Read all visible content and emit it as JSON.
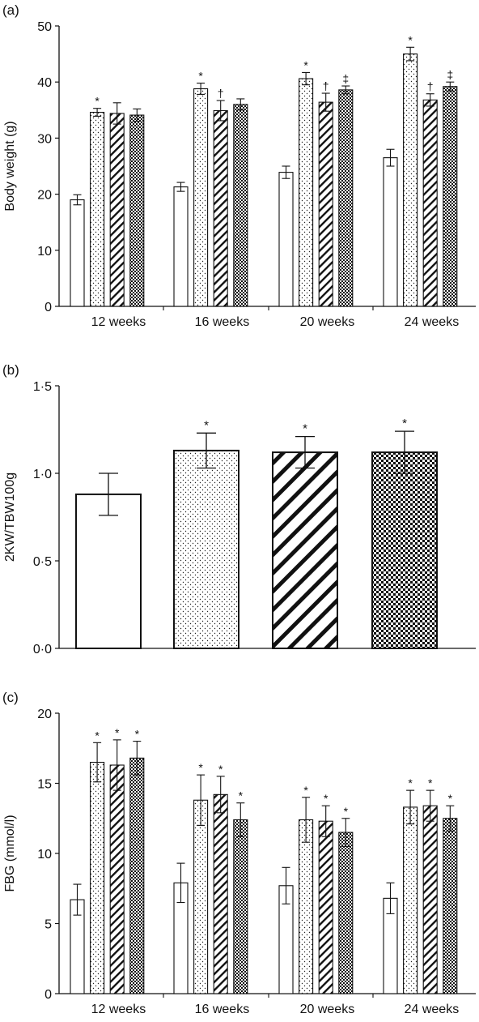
{
  "chart_data": [
    {
      "type": "bar",
      "panel_label": "(a)",
      "ylabel": "Body weight (g)",
      "xlabel": "",
      "ylim": [
        0,
        50
      ],
      "yticks": [
        "0",
        "10",
        "20",
        "30",
        "40",
        "50"
      ],
      "categories": [
        "12 weeks",
        "16 weeks",
        "20 weeks",
        "24 weeks"
      ],
      "series": [
        {
          "pattern": "blank",
          "values": [
            19.0,
            21.3,
            23.9,
            26.5
          ],
          "errors": [
            0.9,
            0.8,
            1.1,
            1.5
          ],
          "marks": [
            "",
            "",
            "",
            ""
          ]
        },
        {
          "pattern": "dots",
          "values": [
            34.6,
            38.8,
            40.6,
            45.0
          ],
          "errors": [
            0.7,
            1.0,
            1.1,
            1.2
          ],
          "marks": [
            "*",
            "*",
            "*",
            "*"
          ]
        },
        {
          "pattern": "stripe",
          "values": [
            34.4,
            34.9,
            36.4,
            36.8
          ],
          "errors": [
            1.9,
            1.8,
            1.6,
            1.1
          ],
          "marks": [
            "",
            "†",
            "†",
            "†"
          ]
        },
        {
          "pattern": "check",
          "values": [
            34.1,
            36.0,
            38.6,
            39.2
          ],
          "errors": [
            1.1,
            1.0,
            0.7,
            0.8
          ],
          "marks": [
            "",
            "",
            "‡",
            "‡"
          ]
        }
      ]
    },
    {
      "type": "bar",
      "panel_label": "(b)",
      "ylabel": "2KW/TBW100g",
      "xlabel": "",
      "ylim": [
        0,
        1.5
      ],
      "yticks": [
        "0·0",
        "0·5",
        "1·0",
        "1·5"
      ],
      "categories": [
        "",
        "",
        "",
        ""
      ],
      "series": [
        {
          "pattern": "mixed",
          "values": [
            0.88,
            1.13,
            1.12,
            1.12
          ],
          "errors": [
            0.12,
            0.1,
            0.09,
            0.12
          ],
          "marks": [
            "",
            "*",
            "*",
            "*"
          ],
          "patterns": [
            "blank",
            "dots",
            "stripe",
            "check"
          ]
        }
      ]
    },
    {
      "type": "bar",
      "panel_label": "(c)",
      "ylabel": "FBG (mmol/l)",
      "xlabel": "",
      "ylim": [
        0,
        20
      ],
      "yticks": [
        "0",
        "5",
        "10",
        "15",
        "20"
      ],
      "categories": [
        "12 weeks",
        "16 weeks",
        "20 weeks",
        "24 weeks"
      ],
      "series": [
        {
          "pattern": "blank",
          "values": [
            6.7,
            7.9,
            7.7,
            6.8
          ],
          "errors": [
            1.1,
            1.4,
            1.3,
            1.1
          ],
          "marks": [
            "",
            "",
            "",
            ""
          ]
        },
        {
          "pattern": "dots",
          "values": [
            16.5,
            13.8,
            12.4,
            13.3
          ],
          "errors": [
            1.4,
            1.8,
            1.6,
            1.2
          ],
          "marks": [
            "*",
            "*",
            "*",
            "*"
          ]
        },
        {
          "pattern": "stripe",
          "values": [
            16.3,
            14.2,
            12.3,
            13.4
          ],
          "errors": [
            1.8,
            1.3,
            1.1,
            1.1
          ],
          "marks": [
            "*",
            "*",
            "*",
            "*"
          ]
        },
        {
          "pattern": "check",
          "values": [
            16.8,
            12.4,
            11.5,
            12.5
          ],
          "errors": [
            1.2,
            1.2,
            1.0,
            0.9
          ],
          "marks": [
            "*",
            "*",
            "*",
            "*"
          ]
        }
      ]
    }
  ]
}
